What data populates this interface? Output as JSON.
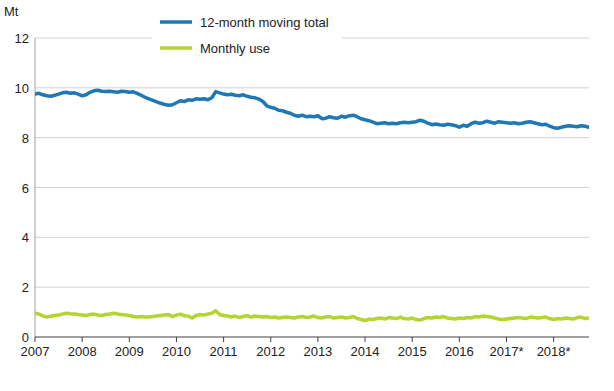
{
  "chart_data": {
    "type": "line",
    "y_label": "Mt",
    "categories": [
      "2007",
      null,
      null,
      null,
      null,
      null,
      null,
      null,
      null,
      null,
      null,
      null,
      "2008",
      null,
      null,
      null,
      null,
      null,
      null,
      null,
      null,
      null,
      null,
      null,
      "2009",
      null,
      null,
      null,
      null,
      null,
      null,
      null,
      null,
      null,
      null,
      null,
      "2010",
      null,
      null,
      null,
      null,
      null,
      null,
      null,
      null,
      null,
      null,
      null,
      "2011",
      null,
      null,
      null,
      null,
      null,
      null,
      null,
      null,
      null,
      null,
      null,
      "2012",
      null,
      null,
      null,
      null,
      null,
      null,
      null,
      null,
      null,
      null,
      null,
      "2013",
      null,
      null,
      null,
      null,
      null,
      null,
      null,
      null,
      null,
      null,
      null,
      "2014",
      null,
      null,
      null,
      null,
      null,
      null,
      null,
      null,
      null,
      null,
      null,
      "2015",
      null,
      null,
      null,
      null,
      null,
      null,
      null,
      null,
      null,
      null,
      null,
      "2016",
      null,
      null,
      null,
      null,
      null,
      null,
      null,
      null,
      null,
      null,
      null,
      "2017*",
      null,
      null,
      null,
      null,
      null,
      null,
      null,
      null,
      null,
      null,
      null,
      "2018*",
      null,
      null,
      null,
      null,
      null,
      null,
      null,
      null,
      null
    ],
    "series": [
      {
        "name": "12-month moving total",
        "color": "#1f78b4",
        "values": [
          9.75,
          9.78,
          9.72,
          9.68,
          9.66,
          9.7,
          9.75,
          9.8,
          9.82,
          9.78,
          9.8,
          9.75,
          9.68,
          9.72,
          9.82,
          9.88,
          9.9,
          9.86,
          9.85,
          9.86,
          9.84,
          9.82,
          9.86,
          9.85,
          9.82,
          9.84,
          9.78,
          9.7,
          9.62,
          9.56,
          9.5,
          9.44,
          9.38,
          9.33,
          9.3,
          9.32,
          9.4,
          9.48,
          9.45,
          9.52,
          9.5,
          9.56,
          9.54,
          9.56,
          9.52,
          9.6,
          9.85,
          9.8,
          9.75,
          9.72,
          9.74,
          9.7,
          9.68,
          9.72,
          9.66,
          9.62,
          9.6,
          9.55,
          9.45,
          9.28,
          9.22,
          9.18,
          9.1,
          9.08,
          9.02,
          8.98,
          8.9,
          8.86,
          8.9,
          8.84,
          8.86,
          8.84,
          8.88,
          8.76,
          8.78,
          8.84,
          8.8,
          8.78,
          8.86,
          8.82,
          8.88,
          8.9,
          8.84,
          8.76,
          8.72,
          8.68,
          8.62,
          8.56,
          8.58,
          8.6,
          8.56,
          8.58,
          8.56,
          8.6,
          8.62,
          8.6,
          8.62,
          8.64,
          8.7,
          8.66,
          8.58,
          8.52,
          8.55,
          8.52,
          8.5,
          8.54,
          8.52,
          8.48,
          8.42,
          8.5,
          8.46,
          8.56,
          8.62,
          8.58,
          8.6,
          8.66,
          8.62,
          8.58,
          8.64,
          8.62,
          8.6,
          8.58,
          8.6,
          8.56,
          8.58,
          8.62,
          8.64,
          8.6,
          8.56,
          8.52,
          8.54,
          8.46,
          8.4,
          8.38,
          8.42,
          8.46,
          8.48,
          8.46,
          8.44,
          8.48,
          8.46,
          8.42
        ]
      },
      {
        "name": "Monthly use",
        "color": "#b5d334",
        "values": [
          0.95,
          0.92,
          0.85,
          0.8,
          0.83,
          0.86,
          0.88,
          0.92,
          0.95,
          0.93,
          0.92,
          0.9,
          0.88,
          0.86,
          0.9,
          0.92,
          0.88,
          0.86,
          0.9,
          0.92,
          0.95,
          0.92,
          0.9,
          0.88,
          0.86,
          0.82,
          0.8,
          0.82,
          0.8,
          0.8,
          0.82,
          0.84,
          0.86,
          0.88,
          0.9,
          0.82,
          0.88,
          0.92,
          0.85,
          0.84,
          0.76,
          0.86,
          0.9,
          0.88,
          0.92,
          0.95,
          1.05,
          0.9,
          0.86,
          0.84,
          0.8,
          0.84,
          0.78,
          0.82,
          0.86,
          0.8,
          0.84,
          0.82,
          0.8,
          0.82,
          0.78,
          0.8,
          0.76,
          0.78,
          0.8,
          0.78,
          0.76,
          0.8,
          0.82,
          0.78,
          0.8,
          0.84,
          0.78,
          0.76,
          0.8,
          0.82,
          0.76,
          0.78,
          0.8,
          0.76,
          0.78,
          0.82,
          0.74,
          0.7,
          0.66,
          0.72,
          0.7,
          0.74,
          0.76,
          0.72,
          0.78,
          0.76,
          0.74,
          0.8,
          0.74,
          0.72,
          0.76,
          0.7,
          0.68,
          0.74,
          0.78,
          0.76,
          0.8,
          0.78,
          0.82,
          0.76,
          0.74,
          0.72,
          0.76,
          0.74,
          0.78,
          0.76,
          0.82,
          0.8,
          0.84,
          0.82,
          0.8,
          0.76,
          0.72,
          0.7,
          0.72,
          0.74,
          0.76,
          0.78,
          0.76,
          0.74,
          0.8,
          0.78,
          0.76,
          0.78,
          0.8,
          0.74,
          0.7,
          0.74,
          0.72,
          0.76,
          0.74,
          0.72,
          0.78,
          0.8,
          0.74,
          0.76
        ]
      }
    ],
    "ylim": [
      0,
      12
    ],
    "yticks": [
      0,
      2,
      4,
      6,
      8,
      10,
      12
    ],
    "grid": true,
    "legend": "top"
  }
}
